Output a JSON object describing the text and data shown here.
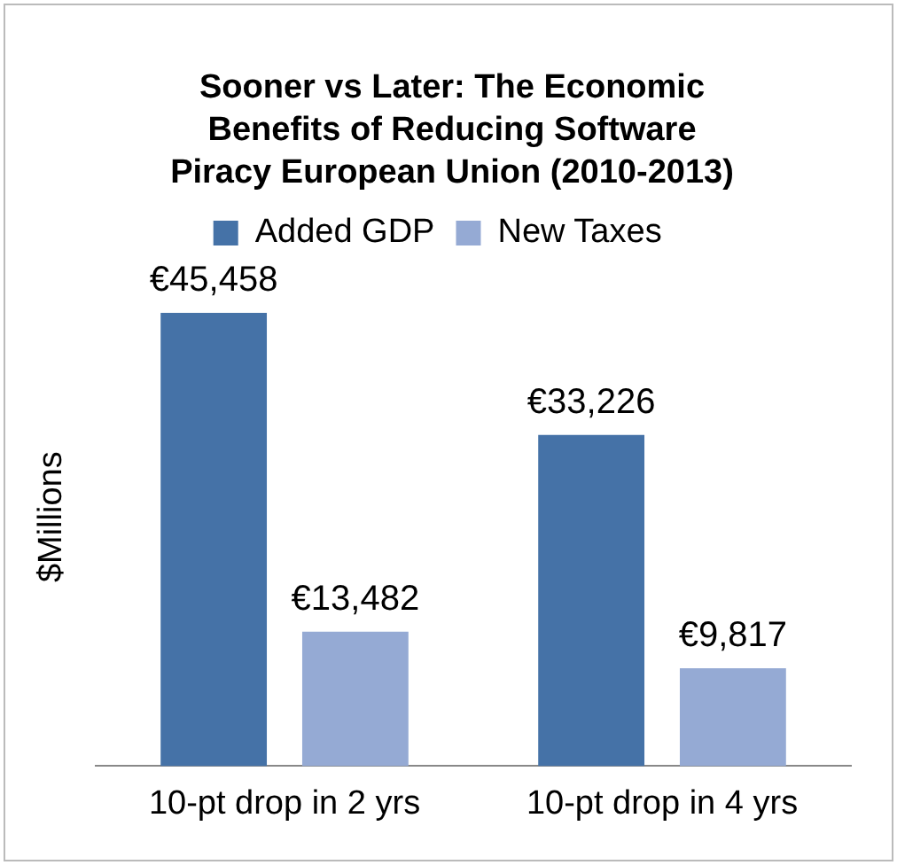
{
  "chart_data": {
    "type": "bar",
    "title": "Sooner vs Later: The Economic Benefits of Reducing Software Piracy European Union (2010-2013)",
    "ylabel": "$Millions",
    "categories": [
      "10-pt drop in 2 yrs",
      "10-pt drop in 4 yrs"
    ],
    "series": [
      {
        "name": "Added GDP",
        "color": "#4572a7",
        "values": [
          45458,
          33226
        ],
        "value_labels": [
          "€45,458",
          "€33,226"
        ]
      },
      {
        "name": "New Taxes",
        "color": "#95aad4",
        "values": [
          13482,
          9817
        ],
        "value_labels": [
          "€13,482",
          "€9,817"
        ]
      }
    ],
    "legend": "top",
    "grid": false
  }
}
